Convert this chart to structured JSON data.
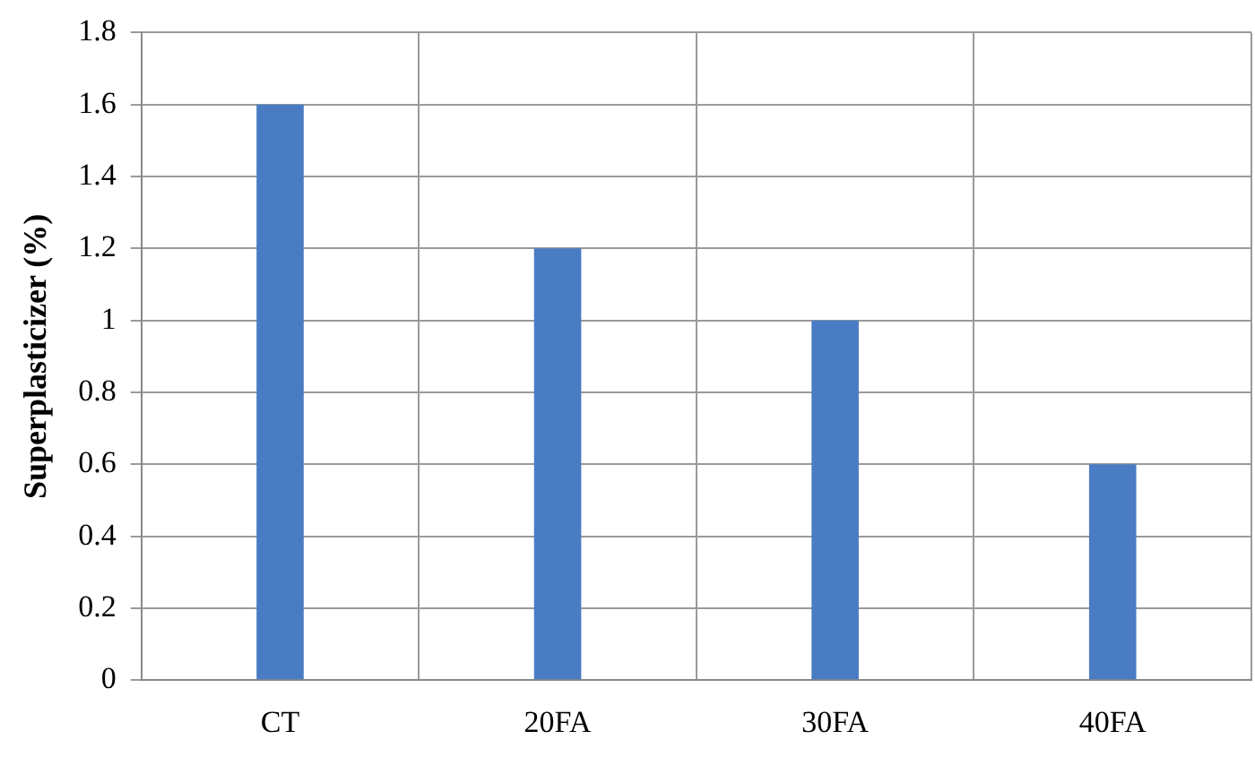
{
  "chart_data": {
    "type": "bar",
    "ylabel": "Superplasticizer (%)",
    "categories": [
      "CT",
      "20FA",
      "30FA",
      "40FA"
    ],
    "values": [
      1.6,
      1.2,
      1.0,
      0.6
    ],
    "color": "#4a7cc4",
    "ylim": [
      0,
      1.8
    ],
    "yticks": [
      0,
      0.2,
      0.4,
      0.6,
      0.8,
      1,
      1.2,
      1.4,
      1.6,
      1.8
    ],
    "grid": true
  }
}
